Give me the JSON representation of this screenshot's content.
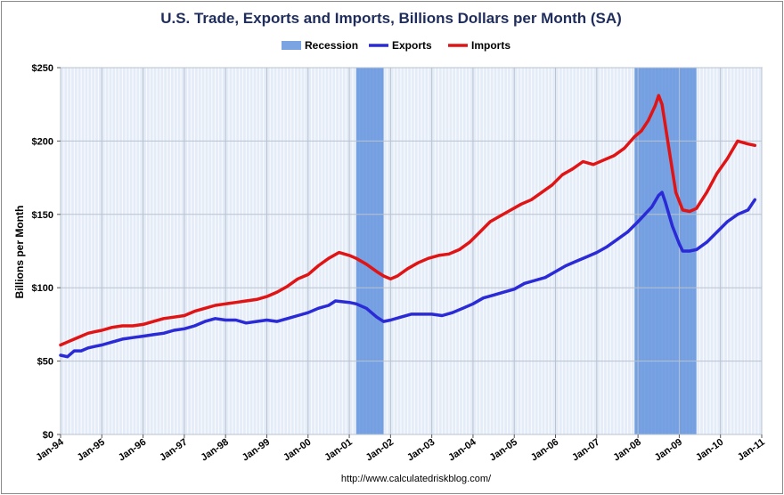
{
  "chart_data": {
    "type": "line",
    "title": "U.S. Trade, Exports and Imports, Billions Dollars per Month (SA)",
    "ylabel": "Billions per Month",
    "xlabel": "",
    "source": "http://www.calculatedriskblog.com/",
    "ylim": [
      0,
      250
    ],
    "xlim": [
      "1994-01",
      "2011-01"
    ],
    "y_ticks": [
      "$0",
      "$50",
      "$100",
      "$150",
      "$200",
      "$250"
    ],
    "y_tick_values": [
      0,
      50,
      100,
      150,
      200,
      250
    ],
    "x_ticks": [
      "Jan-94",
      "Jan-95",
      "Jan-96",
      "Jan-97",
      "Jan-98",
      "Jan-99",
      "Jan-00",
      "Jan-01",
      "Jan-02",
      "Jan-03",
      "Jan-04",
      "Jan-05",
      "Jan-06",
      "Jan-07",
      "Jan-08",
      "Jan-09",
      "Jan-10",
      "Jan-11"
    ],
    "x_tick_dates": [
      "1994-01",
      "1995-01",
      "1996-01",
      "1997-01",
      "1998-01",
      "1999-01",
      "2000-01",
      "2001-01",
      "2002-01",
      "2003-01",
      "2004-01",
      "2005-01",
      "2006-01",
      "2007-01",
      "2008-01",
      "2009-01",
      "2010-01",
      "2011-01"
    ],
    "grid": true,
    "legend_position": "top-center",
    "colors": {
      "recession": "#4f86d9",
      "exports": "#2a2ad6",
      "imports": "#e01414",
      "plot_background": "#e4ecf8",
      "grid": "#b9c2cf"
    },
    "recessions": [
      {
        "name": "Recession",
        "start": "2001-03",
        "end": "2001-11"
      },
      {
        "name": "Recession",
        "start": "2007-12",
        "end": "2009-06"
      }
    ],
    "series": [
      {
        "name": "Exports",
        "points": [
          [
            "1994-01",
            54
          ],
          [
            "1994-03",
            53
          ],
          [
            "1994-05",
            57
          ],
          [
            "1994-07",
            57
          ],
          [
            "1994-09",
            59
          ],
          [
            "1994-11",
            60
          ],
          [
            "1995-01",
            61
          ],
          [
            "1995-04",
            63
          ],
          [
            "1995-07",
            65
          ],
          [
            "1995-10",
            66
          ],
          [
            "1996-01",
            67
          ],
          [
            "1996-04",
            68
          ],
          [
            "1996-07",
            69
          ],
          [
            "1996-10",
            71
          ],
          [
            "1997-01",
            72
          ],
          [
            "1997-04",
            74
          ],
          [
            "1997-07",
            77
          ],
          [
            "1997-10",
            79
          ],
          [
            "1998-01",
            78
          ],
          [
            "1998-04",
            78
          ],
          [
            "1998-07",
            76
          ],
          [
            "1998-10",
            77
          ],
          [
            "1999-01",
            78
          ],
          [
            "1999-04",
            77
          ],
          [
            "1999-07",
            79
          ],
          [
            "1999-10",
            81
          ],
          [
            "2000-01",
            83
          ],
          [
            "2000-04",
            86
          ],
          [
            "2000-07",
            88
          ],
          [
            "2000-09",
            91
          ],
          [
            "2001-01",
            90
          ],
          [
            "2001-03",
            89
          ],
          [
            "2001-06",
            86
          ],
          [
            "2001-09",
            80
          ],
          [
            "2001-11",
            77
          ],
          [
            "2002-01",
            78
          ],
          [
            "2002-04",
            80
          ],
          [
            "2002-07",
            82
          ],
          [
            "2002-10",
            82
          ],
          [
            "2003-01",
            82
          ],
          [
            "2003-04",
            81
          ],
          [
            "2003-07",
            83
          ],
          [
            "2003-10",
            86
          ],
          [
            "2004-01",
            89
          ],
          [
            "2004-04",
            93
          ],
          [
            "2004-07",
            95
          ],
          [
            "2004-10",
            97
          ],
          [
            "2005-01",
            99
          ],
          [
            "2005-04",
            103
          ],
          [
            "2005-07",
            105
          ],
          [
            "2005-10",
            107
          ],
          [
            "2006-01",
            111
          ],
          [
            "2006-04",
            115
          ],
          [
            "2006-07",
            118
          ],
          [
            "2006-10",
            121
          ],
          [
            "2007-01",
            124
          ],
          [
            "2007-04",
            128
          ],
          [
            "2007-07",
            133
          ],
          [
            "2007-10",
            138
          ],
          [
            "2008-01",
            145
          ],
          [
            "2008-03",
            150
          ],
          [
            "2008-05",
            155
          ],
          [
            "2008-07",
            163
          ],
          [
            "2008-08",
            165
          ],
          [
            "2008-09",
            158
          ],
          [
            "2008-11",
            142
          ],
          [
            "2009-01",
            130
          ],
          [
            "2009-02",
            125
          ],
          [
            "2009-04",
            125
          ],
          [
            "2009-06",
            126
          ],
          [
            "2009-09",
            131
          ],
          [
            "2009-12",
            138
          ],
          [
            "2010-03",
            145
          ],
          [
            "2010-06",
            150
          ],
          [
            "2010-09",
            153
          ],
          [
            "2010-11",
            160
          ]
        ]
      },
      {
        "name": "Imports",
        "points": [
          [
            "1994-01",
            61
          ],
          [
            "1994-03",
            63
          ],
          [
            "1994-05",
            65
          ],
          [
            "1994-07",
            67
          ],
          [
            "1994-09",
            69
          ],
          [
            "1994-11",
            70
          ],
          [
            "1995-01",
            71
          ],
          [
            "1995-04",
            73
          ],
          [
            "1995-07",
            74
          ],
          [
            "1995-10",
            74
          ],
          [
            "1996-01",
            75
          ],
          [
            "1996-04",
            77
          ],
          [
            "1996-07",
            79
          ],
          [
            "1996-10",
            80
          ],
          [
            "1997-01",
            81
          ],
          [
            "1997-04",
            84
          ],
          [
            "1997-07",
            86
          ],
          [
            "1997-10",
            88
          ],
          [
            "1998-01",
            89
          ],
          [
            "1998-04",
            90
          ],
          [
            "1998-07",
            91
          ],
          [
            "1998-10",
            92
          ],
          [
            "1999-01",
            94
          ],
          [
            "1999-04",
            97
          ],
          [
            "1999-07",
            101
          ],
          [
            "1999-10",
            106
          ],
          [
            "2000-01",
            109
          ],
          [
            "2000-04",
            115
          ],
          [
            "2000-07",
            120
          ],
          [
            "2000-10",
            124
          ],
          [
            "2001-01",
            122
          ],
          [
            "2001-03",
            120
          ],
          [
            "2001-06",
            116
          ],
          [
            "2001-09",
            111
          ],
          [
            "2001-11",
            108
          ],
          [
            "2002-01",
            106
          ],
          [
            "2002-03",
            108
          ],
          [
            "2002-06",
            113
          ],
          [
            "2002-09",
            117
          ],
          [
            "2002-12",
            120
          ],
          [
            "2003-03",
            122
          ],
          [
            "2003-06",
            123
          ],
          [
            "2003-09",
            126
          ],
          [
            "2003-12",
            131
          ],
          [
            "2004-03",
            138
          ],
          [
            "2004-06",
            145
          ],
          [
            "2004-09",
            149
          ],
          [
            "2004-12",
            153
          ],
          [
            "2005-03",
            157
          ],
          [
            "2005-06",
            160
          ],
          [
            "2005-09",
            165
          ],
          [
            "2005-12",
            170
          ],
          [
            "2006-03",
            177
          ],
          [
            "2006-06",
            181
          ],
          [
            "2006-09",
            186
          ],
          [
            "2006-12",
            184
          ],
          [
            "2007-03",
            187
          ],
          [
            "2007-06",
            190
          ],
          [
            "2007-09",
            195
          ],
          [
            "2007-12",
            203
          ],
          [
            "2008-02",
            207
          ],
          [
            "2008-04",
            214
          ],
          [
            "2008-06",
            224
          ],
          [
            "2008-07",
            231
          ],
          [
            "2008-08",
            225
          ],
          [
            "2008-10",
            195
          ],
          [
            "2008-12",
            165
          ],
          [
            "2009-02",
            153
          ],
          [
            "2009-04",
            152
          ],
          [
            "2009-06",
            154
          ],
          [
            "2009-09",
            165
          ],
          [
            "2009-12",
            178
          ],
          [
            "2010-03",
            188
          ],
          [
            "2010-06",
            200
          ],
          [
            "2010-09",
            198
          ],
          [
            "2010-11",
            197
          ]
        ]
      }
    ]
  }
}
